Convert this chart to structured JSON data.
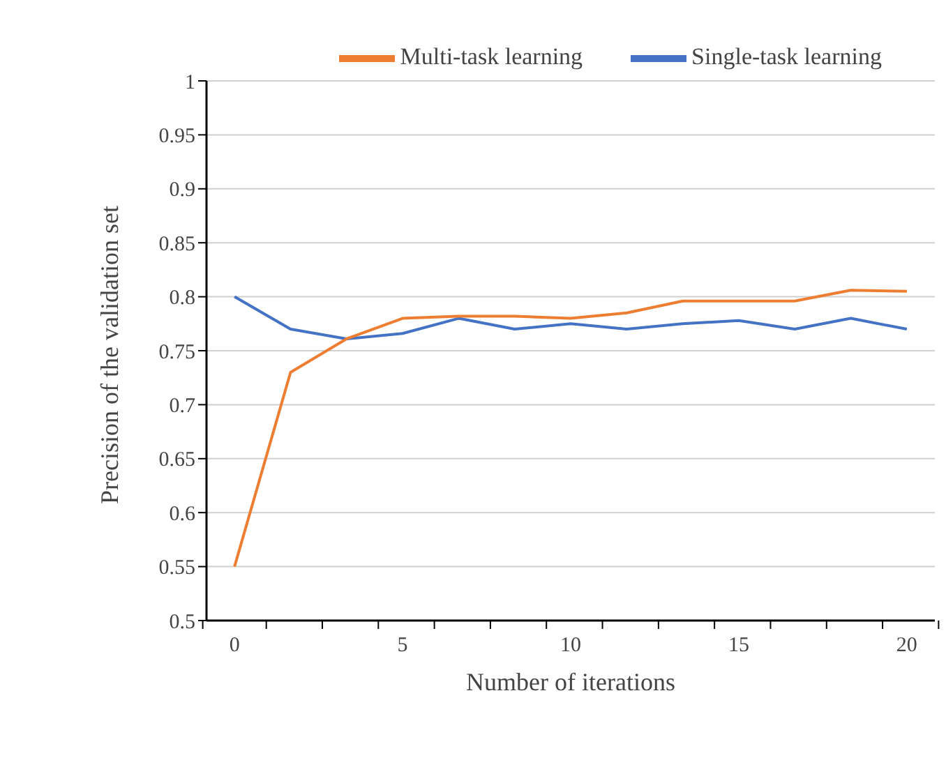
{
  "chart_data": {
    "type": "line",
    "xlabel": "Number of iterations",
    "ylabel": "Precision of the validation set",
    "categories": [
      "0",
      null,
      null,
      "5",
      null,
      null,
      "10",
      null,
      null,
      "15",
      null,
      null,
      "20"
    ],
    "series": [
      {
        "name": "Single-task learning",
        "color": "#4472c4",
        "values": [
          0.8,
          0.77,
          0.761,
          0.766,
          0.78,
          0.77,
          0.775,
          0.77,
          0.775,
          0.778,
          0.77,
          0.78,
          0.77
        ]
      },
      {
        "name": "Multi-task learning",
        "color": "#ed7d31",
        "values": [
          0.55,
          0.73,
          0.761,
          0.78,
          0.782,
          0.782,
          0.78,
          0.785,
          0.796,
          0.796,
          0.796,
          0.806,
          0.805
        ]
      }
    ],
    "ylim": [
      0.5,
      1
    ],
    "yticks": [
      0.5,
      0.55,
      0.6,
      0.65,
      0.7,
      0.75,
      0.8,
      0.85,
      0.9,
      0.95,
      1
    ],
    "grid": "y",
    "legend": "top right",
    "marker": "none",
    "line_style": "solid"
  }
}
